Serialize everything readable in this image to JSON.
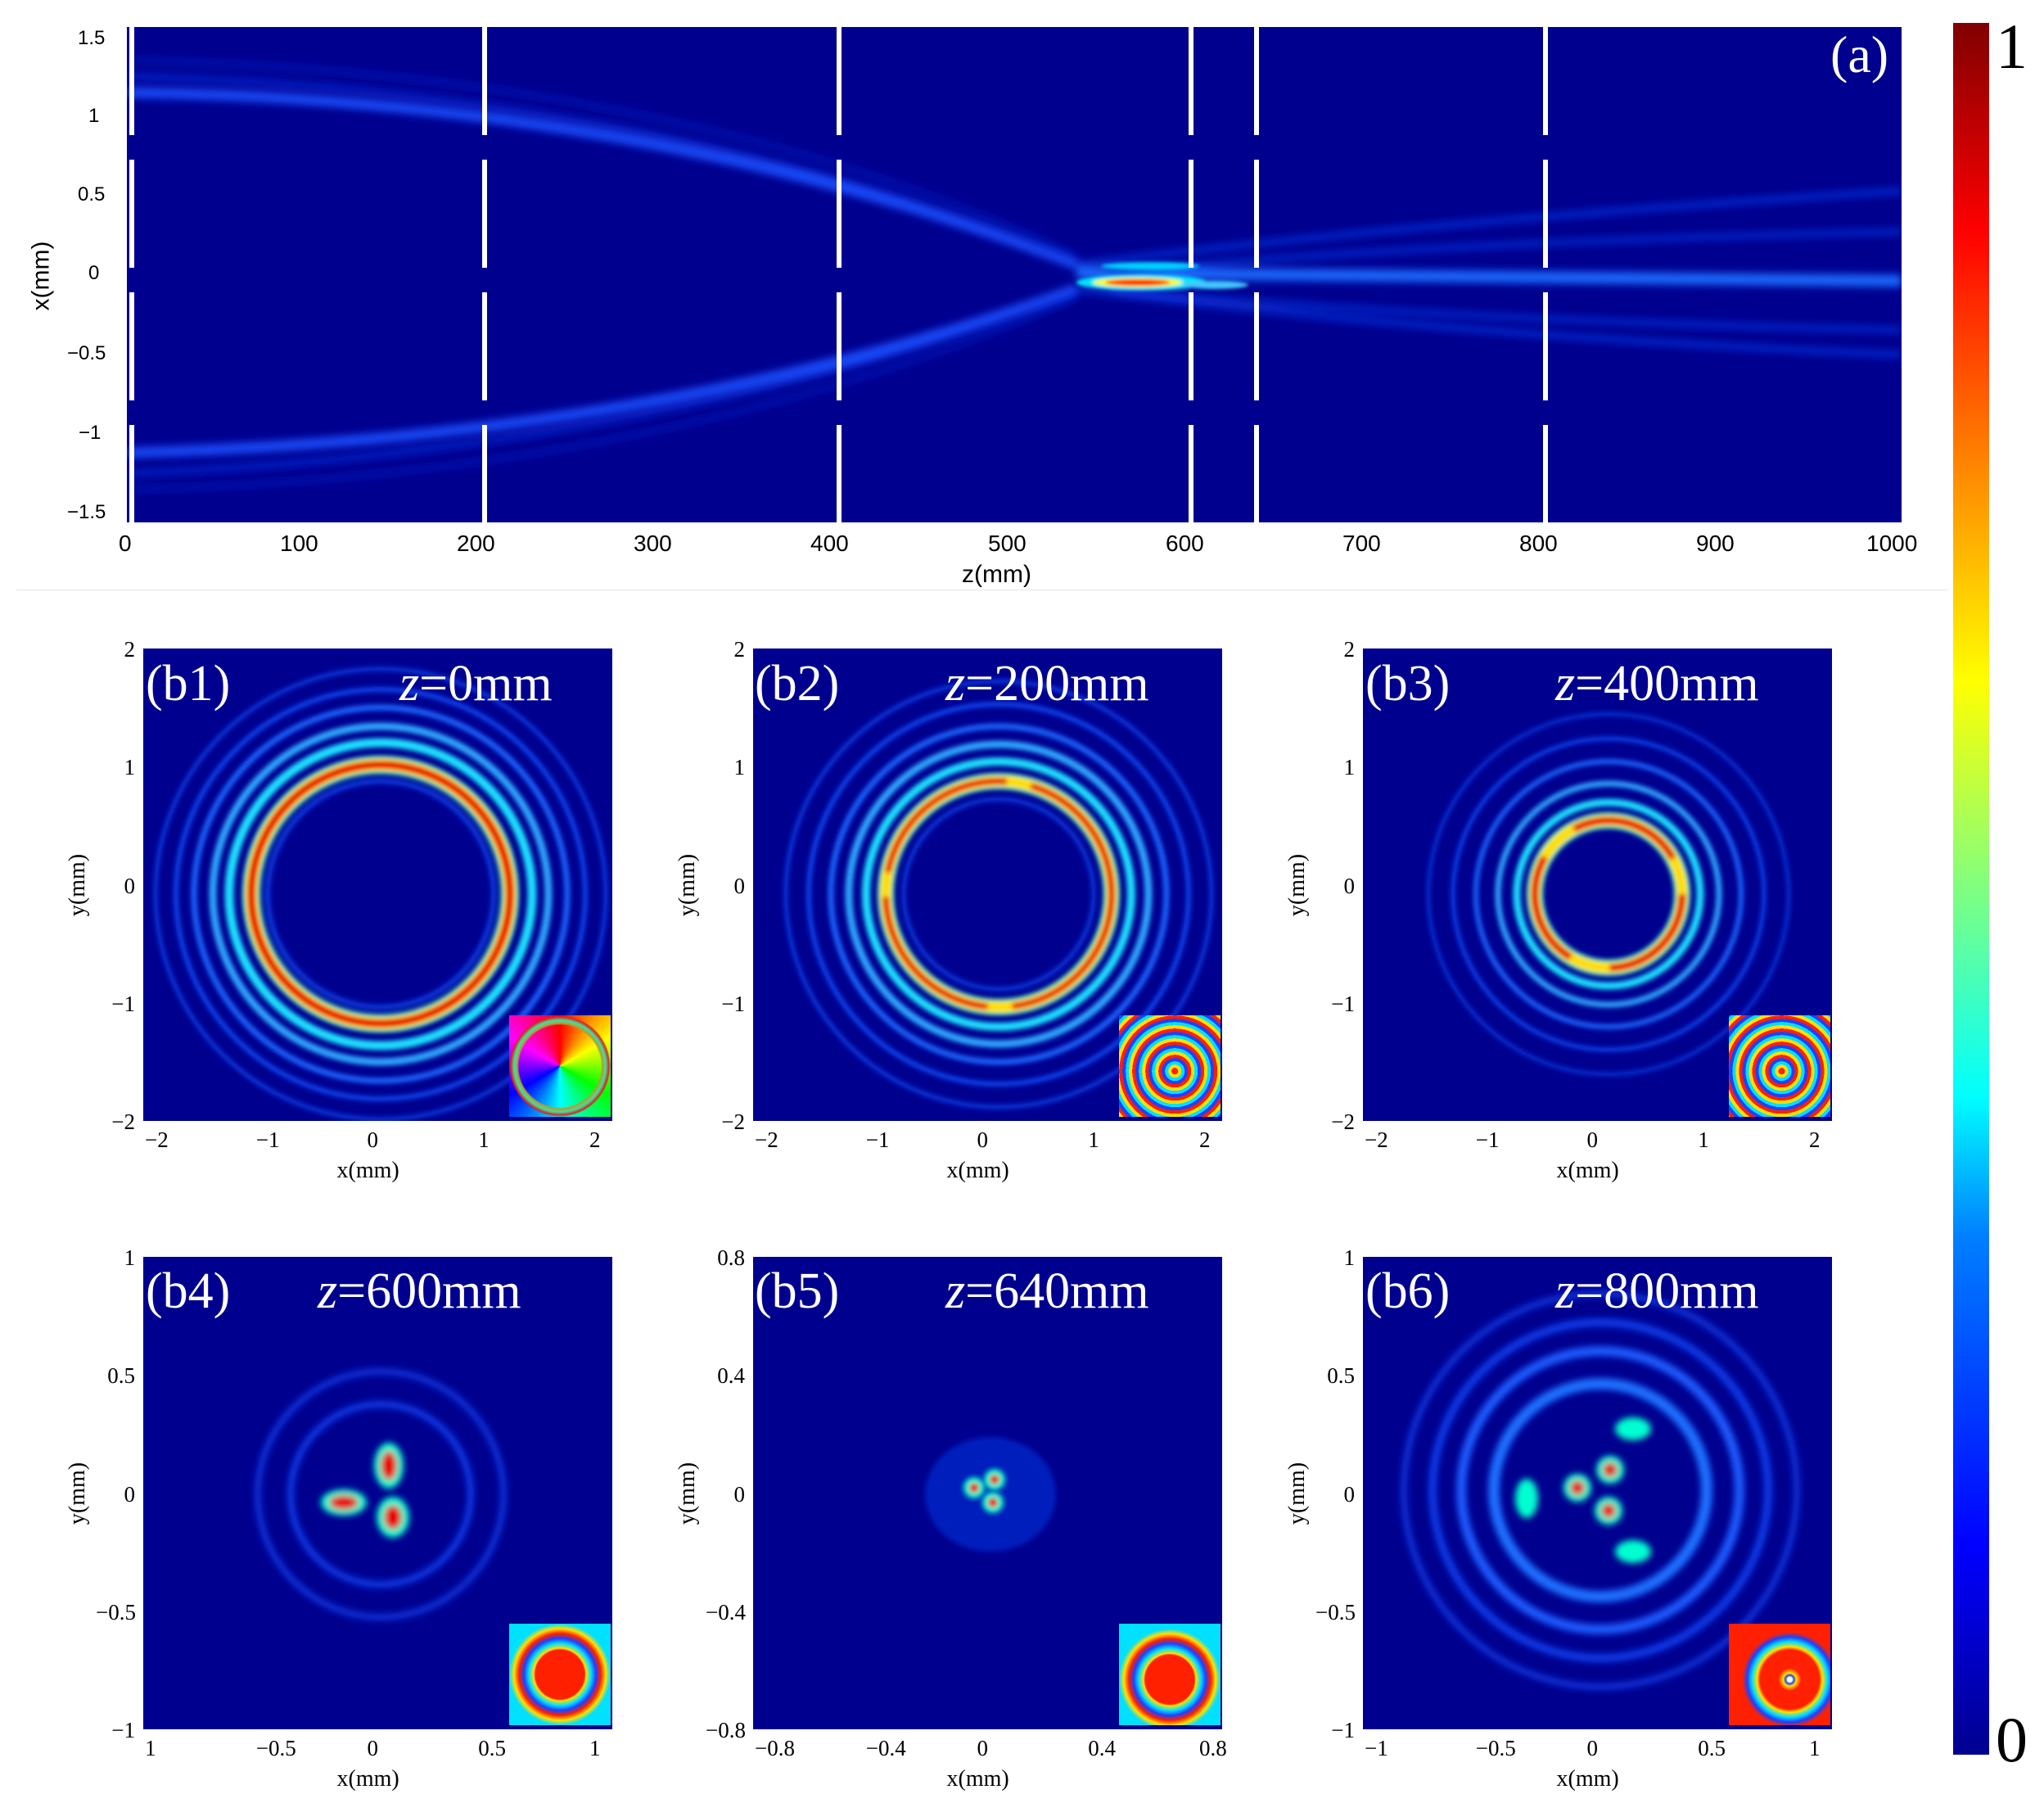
{
  "panel_a": {
    "label": "(a)",
    "xlabel": "z(mm)",
    "ylabel": "x(mm)",
    "xticks": [
      "0",
      "100",
      "200",
      "300",
      "400",
      "500",
      "600",
      "700",
      "800",
      "900",
      "1000"
    ],
    "yticks": [
      "1.5",
      "1",
      "0.5",
      "0",
      "−0.5",
      "−1",
      "−1.5"
    ],
    "dashed_marks_z": [
      "0",
      "200",
      "400",
      "600",
      "640",
      "800"
    ]
  },
  "colorbar": {
    "max": "1",
    "min": "0"
  },
  "panels_b": [
    {
      "label": "(b1)",
      "z": "z",
      "eq": "=",
      "val": "0mm",
      "xticks": [
        "−2",
        "−1",
        "0",
        "1",
        "2"
      ],
      "yticks": [
        "2",
        "1",
        "0",
        "−1",
        "−2"
      ],
      "xlabel": "x(mm)",
      "ylabel": "y(mm)",
      "inset": "phase-vortex-inset"
    },
    {
      "label": "(b2)",
      "z": "z",
      "eq": "=",
      "val": "200mm",
      "xticks": [
        "−2",
        "−1",
        "0",
        "1",
        "2"
      ],
      "yticks": [
        "2",
        "1",
        "0",
        "−1",
        "−2"
      ],
      "xlabel": "x(mm)",
      "ylabel": "y(mm)",
      "inset": "phase-spiral-inset"
    },
    {
      "label": "(b3)",
      "z": "z",
      "eq": "=",
      "val": "400mm",
      "xticks": [
        "−2",
        "−1",
        "0",
        "1",
        "2"
      ],
      "yticks": [
        "2",
        "1",
        "0",
        "−1",
        "−2"
      ],
      "xlabel": "x(mm)",
      "ylabel": "y(mm)",
      "inset": "phase-spiral-inset"
    },
    {
      "label": "(b4)",
      "z": "z",
      "eq": "=",
      "val": "600mm",
      "xticks": [
        "1",
        "−0.5",
        "0",
        "0.5",
        "1"
      ],
      "yticks": [
        "1",
        "0.5",
        "0",
        "−0.5",
        "−1"
      ],
      "xlabel": "x(mm)",
      "ylabel": "y(mm)",
      "inset": "phase-spiral-inset"
    },
    {
      "label": "(b5)",
      "z": "z",
      "eq": "=",
      "val": "640mm",
      "xticks": [
        "−0.8",
        "−0.4",
        "0",
        "0.4",
        "0.8"
      ],
      "yticks": [
        "0.8",
        "0.4",
        "0",
        "−0.4",
        "−0.8"
      ],
      "xlabel": "x(mm)",
      "ylabel": "y(mm)",
      "inset": "phase-spiral-inset"
    },
    {
      "label": "(b6)",
      "z": "z",
      "eq": "=",
      "val": "800mm",
      "xticks": [
        "−1",
        "−0.5",
        "0",
        "0.5",
        "1"
      ],
      "yticks": [
        "1",
        "0.5",
        "0",
        "−0.5",
        "−1"
      ],
      "xlabel": "x(mm)",
      "ylabel": "y(mm)",
      "inset": "phase-spiral-inset"
    }
  ]
}
